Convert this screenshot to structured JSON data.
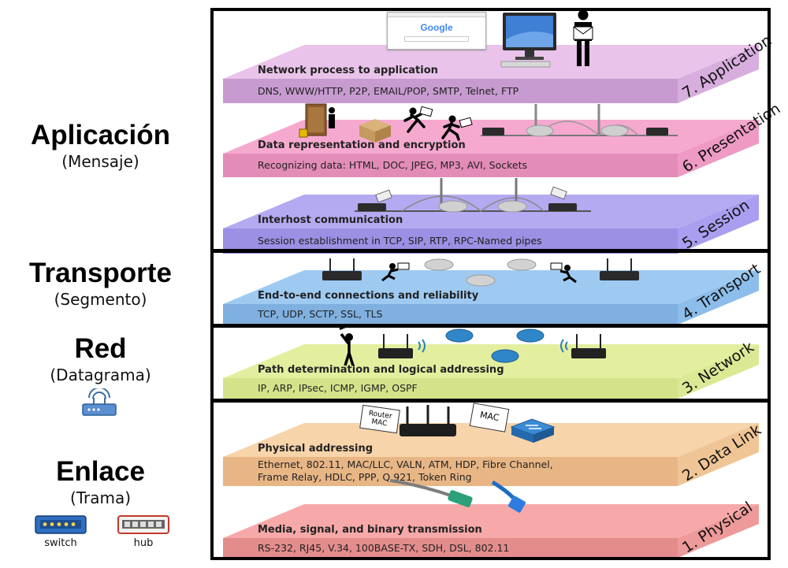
{
  "left_groups": [
    {
      "title": "Aplicación",
      "subtitle": "(Mensaje)"
    },
    {
      "title": "Transporte",
      "subtitle": "(Segmento)"
    },
    {
      "title": "Red",
      "subtitle": "(Datagrama)"
    },
    {
      "title": "Enlace",
      "subtitle": "(Trama)"
    }
  ],
  "device_captions": {
    "switch": "switch",
    "hub": "hub"
  },
  "browser_logo": "Google",
  "tag_router_mac": "Router MAC",
  "tag_mac": "MAC",
  "layers": [
    {
      "side_label": "7. Application",
      "title": "Network process to application",
      "protocols": "DNS, WWW/HTTP, P2P, EMAIL/POP, SMTP, Telnet, FTP",
      "top_color": "#e9c3ea",
      "front_color": "#c79bd0",
      "side_color": "#d7aede"
    },
    {
      "side_label": "6. Presentation",
      "title": "Data representation and encryption",
      "protocols": "Recognizing data: HTML, DOC, JPEG, MP3, AVI, Sockets",
      "top_color": "#f6a9cf",
      "front_color": "#e48cb8",
      "side_color": "#ee9ac4"
    },
    {
      "side_label": "5. Session",
      "title": "Interhost communication",
      "protocols": "Session establishment in TCP, SIP, RTP, RPC-Named pipes",
      "top_color": "#b4aaf1",
      "front_color": "#9b90e3",
      "side_color": "#a99ef0"
    },
    {
      "side_label": "4. Transport",
      "title": "End-to-end connections and reliability",
      "protocols": "TCP, UDP, SCTP, SSL, TLS",
      "top_color": "#9ecaf2",
      "front_color": "#7fb0e0",
      "side_color": "#8dbdea"
    },
    {
      "side_label": "3. Network",
      "title": "Path determination and logical addressing",
      "protocols": "IP, ARP, IPsec, ICMP, IGMP, OSPF",
      "top_color": "#e3ef9f",
      "front_color": "#d4e38a",
      "side_color": "#dbe995"
    },
    {
      "side_label": "2. Data Link",
      "title": "Physical addressing",
      "protocols": "Ethernet, 802.11, MAC/LLC, VALN, ATM, HDP, Fibre Channel,",
      "protocols_line2": "Frame Relay, HDLC,  PPP, Q.921, Token Ring",
      "top_color": "#f8d4aa",
      "front_color": "#e8b685",
      "side_color": "#f0c596"
    },
    {
      "side_label": "1. Physical",
      "title": "Media, signal, and binary transmission",
      "protocols": "RS-232, RJ45, V.34, 100BASE-TX, SDH, DSL, 802.11",
      "top_color": "#f7a9a9",
      "front_color": "#e48c8c",
      "side_color": "#ee9a9a"
    }
  ]
}
